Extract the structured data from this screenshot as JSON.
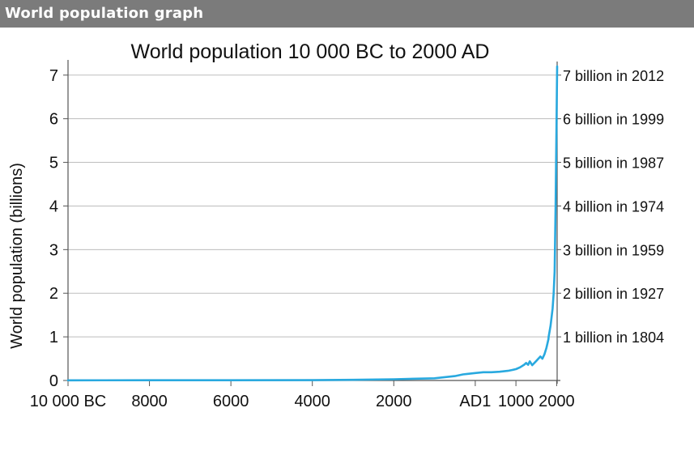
{
  "window": {
    "title": "World population graph"
  },
  "colors": {
    "header": "#7b7b7b",
    "line": "#29a9df",
    "grid": "#bdbdbd",
    "axis": "#555555"
  },
  "chart_data": {
    "type": "line",
    "title": "World population 10 000 BC to 2000 AD",
    "xlabel": "",
    "ylabel": "World population (billions)",
    "xlim": [
      -10000,
      2012
    ],
    "ylim": [
      0,
      7.2
    ],
    "grid": true,
    "x_ticks": [
      {
        "value": -10000,
        "label": "10 000 BC"
      },
      {
        "value": -8000,
        "label": "8000"
      },
      {
        "value": -6000,
        "label": "6000"
      },
      {
        "value": -4000,
        "label": "4000"
      },
      {
        "value": -2000,
        "label": "2000"
      },
      {
        "value": 1,
        "label": "AD1"
      },
      {
        "value": 1000,
        "label": "1000"
      },
      {
        "value": 2000,
        "label": "2000"
      }
    ],
    "y_ticks": [
      0,
      1,
      2,
      3,
      4,
      5,
      6,
      7
    ],
    "milestones": [
      {
        "value": 7,
        "label": "7 billion in 2012"
      },
      {
        "value": 6,
        "label": "6 billion in 1999"
      },
      {
        "value": 5,
        "label": "5 billion in 1987"
      },
      {
        "value": 4,
        "label": "4 billion in 1974"
      },
      {
        "value": 3,
        "label": "3 billion in 1959"
      },
      {
        "value": 2,
        "label": "2 billion in 1927"
      },
      {
        "value": 1,
        "label": "1 billion in 1804"
      }
    ],
    "series": [
      {
        "x": [
          -10000,
          -8000,
          -6000,
          -4000,
          -3000,
          -2000,
          -1000,
          -500,
          -300,
          -200,
          1,
          200,
          400,
          600,
          800,
          900,
          1000,
          1100,
          1200,
          1250,
          1300,
          1340,
          1400,
          1500,
          1600,
          1650,
          1700,
          1750,
          1800,
          1804,
          1850,
          1900,
          1927,
          1950,
          1959,
          1974,
          1987,
          1999,
          2012
        ],
        "y": [
          0.004,
          0.005,
          0.006,
          0.007,
          0.014,
          0.027,
          0.05,
          0.1,
          0.14,
          0.15,
          0.17,
          0.19,
          0.19,
          0.2,
          0.22,
          0.24,
          0.26,
          0.3,
          0.36,
          0.4,
          0.36,
          0.44,
          0.35,
          0.45,
          0.55,
          0.5,
          0.6,
          0.75,
          0.95,
          1.0,
          1.26,
          1.65,
          2.0,
          2.5,
          3.0,
          4.0,
          5.0,
          6.0,
          7.2
        ]
      }
    ]
  }
}
